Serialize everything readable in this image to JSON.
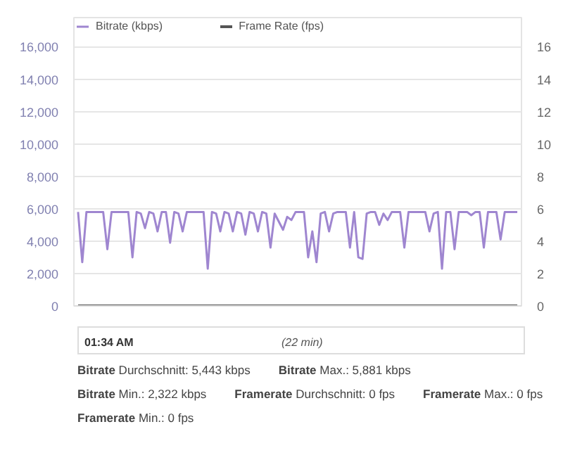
{
  "chart_data": {
    "type": "line",
    "categories": [
      null,
      null,
      null,
      null,
      null,
      null,
      null,
      null,
      null,
      null,
      null,
      null,
      null,
      null,
      null,
      null,
      null,
      null,
      null,
      null,
      null,
      null,
      null,
      null,
      null,
      null,
      null,
      null,
      null,
      null,
      null,
      null,
      null,
      null,
      null,
      null,
      null,
      null,
      null,
      null,
      null,
      null,
      null,
      null,
      null,
      null,
      null,
      null,
      null,
      null,
      null,
      null,
      null,
      null,
      null,
      null,
      null,
      null,
      null,
      null,
      null,
      null,
      null,
      null,
      null,
      null,
      null,
      null,
      null,
      null,
      null,
      null,
      null,
      null,
      null,
      null,
      null,
      null,
      null,
      null,
      null,
      null,
      null,
      null,
      null,
      null,
      null,
      null,
      null,
      null,
      null,
      null,
      null,
      null,
      null,
      null,
      null,
      null,
      null,
      null,
      null,
      null,
      null,
      null,
      null,
      null
    ],
    "series": [
      {
        "name": "Bitrate (kbps)",
        "color": "#9f86d0",
        "values": [
          5800,
          2700,
          5800,
          5800,
          5800,
          5800,
          5800,
          3500,
          5800,
          5800,
          5800,
          5800,
          5800,
          3000,
          5800,
          5700,
          4800,
          5800,
          5700,
          4600,
          5800,
          5800,
          3900,
          5800,
          5700,
          4600,
          5800,
          5800,
          5800,
          5800,
          5800,
          2300,
          5800,
          5700,
          4600,
          5800,
          5700,
          4600,
          5800,
          5700,
          4400,
          5800,
          5700,
          4600,
          5800,
          5700,
          3600,
          5700,
          5200,
          4700,
          5500,
          5300,
          5800,
          5800,
          5800,
          3000,
          4600,
          2700,
          5700,
          5800,
          4600,
          5700,
          5800,
          5800,
          5800,
          3600,
          5800,
          3000,
          2900,
          5700,
          5800,
          5800,
          5000,
          5700,
          5300,
          5800,
          5800,
          5800,
          3600,
          5800,
          5800,
          5800,
          5800,
          5800,
          4600,
          5700,
          5800,
          2300,
          5800,
          5800,
          3500,
          5800,
          5800,
          5800,
          5600,
          5800,
          5800,
          3600,
          5800,
          5800,
          5800,
          4100,
          5800,
          5800,
          5800,
          5800
        ]
      },
      {
        "name": "Frame Rate (fps)",
        "color": "#555555",
        "axis": "y2",
        "values": [
          0,
          0,
          0,
          0,
          0,
          0,
          0,
          0,
          0,
          0,
          0,
          0,
          0,
          0,
          0,
          0,
          0,
          0,
          0,
          0,
          0,
          0,
          0,
          0,
          0,
          0,
          0,
          0,
          0,
          0,
          0,
          0,
          0,
          0,
          0,
          0,
          0,
          0,
          0,
          0,
          0,
          0,
          0,
          0,
          0,
          0,
          0,
          0,
          0,
          0,
          0,
          0,
          0,
          0,
          0,
          0,
          0,
          0,
          0,
          0,
          0,
          0,
          0,
          0,
          0,
          0,
          0,
          0,
          0,
          0,
          0,
          0,
          0,
          0,
          0,
          0,
          0,
          0,
          0,
          0,
          0,
          0,
          0,
          0,
          0,
          0,
          0,
          0,
          0,
          0,
          0,
          0,
          0,
          0,
          0,
          0,
          0,
          0,
          0,
          0,
          0,
          0,
          0,
          0,
          0,
          0
        ]
      }
    ],
    "ylim": [
      0,
      17800
    ],
    "yticks": [
      0,
      {
        "value": 2000,
        "label": "2,000"
      },
      {
        "value": 4000,
        "label": "4,000"
      },
      {
        "value": 6000,
        "label": "6,000"
      },
      {
        "value": 8000,
        "label": "8,000"
      },
      {
        "value": 10000,
        "label": "10,000"
      },
      {
        "value": 12000,
        "label": "12,000"
      },
      {
        "value": 14000,
        "label": "14,000"
      },
      {
        "value": 16000,
        "label": "16,000"
      }
    ],
    "y2lim": [
      0,
      17.8
    ],
    "y2ticks": [
      0,
      2,
      4,
      6,
      8,
      10,
      12,
      14,
      16
    ],
    "tick_labels": "y",
    "grid": "y",
    "legend": "top left",
    "annotations": [
      "01:34 AM",
      "(22 min)",
      "Bitrate Durchschnitt: 5,443 kbps",
      "Bitrate Max.: 5,881 kbps",
      "Bitrate Min.: 2,322 kbps",
      "Framerate Durchschnitt: 0 fps",
      "Framerate Max.: 0 fps",
      "Framerate Min.: 0 fps"
    ]
  }
}
